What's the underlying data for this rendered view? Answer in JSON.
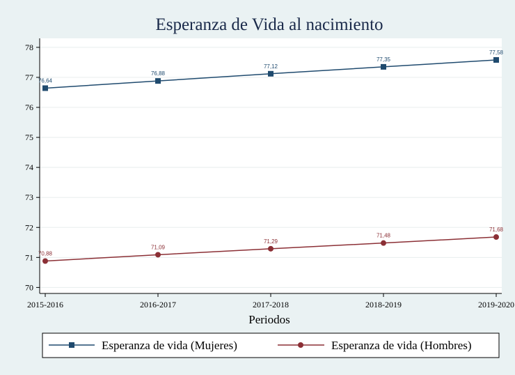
{
  "chart_data": {
    "type": "line",
    "title": "Esperanza de Vida al nacimiento",
    "xlabel": "Periodos",
    "ylabel": "",
    "categories": [
      "2015-2016",
      "2016-2017",
      "2017-2018",
      "2018-2019",
      "2019-2020"
    ],
    "ylim": [
      69.8,
      78.3
    ],
    "yticks": [
      70,
      71,
      72,
      73,
      74,
      75,
      76,
      77,
      78
    ],
    "grid": true,
    "legend_position": "bottom",
    "series": [
      {
        "name": "Esperanza de vida (Mujeres)",
        "values": [
          76.64,
          76.88,
          77.12,
          77.35,
          77.58
        ],
        "labels": [
          "76,64",
          "76,88",
          "77,12",
          "77,35",
          "77,58"
        ],
        "color": "#1f4a6e",
        "marker": "square"
      },
      {
        "name": "Esperanza de vida (Hombres)",
        "values": [
          70.88,
          71.09,
          71.29,
          71.48,
          71.68
        ],
        "labels": [
          "70,88",
          "71,09",
          "71,29",
          "71,48",
          "71,68"
        ],
        "color": "#8b2f35",
        "marker": "circle"
      }
    ]
  }
}
